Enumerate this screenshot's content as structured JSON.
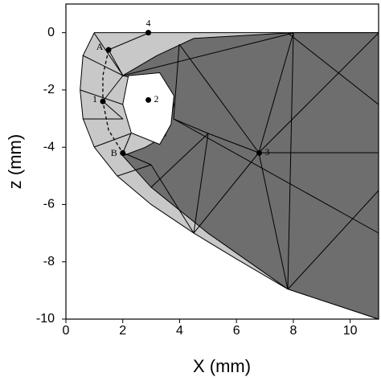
{
  "chart_data": {
    "type": "mesh",
    "xlabel": "X (mm)",
    "ylabel": "z (mm)",
    "xlim": [
      0,
      11
    ],
    "ylim": [
      -10,
      1
    ],
    "xticks": [
      0,
      2,
      4,
      6,
      8,
      10
    ],
    "yticks": [
      0,
      -2,
      -4,
      -6,
      -8,
      -10
    ],
    "regions": [
      {
        "color": "#c8c8c8",
        "x": [
          1,
          11,
          11,
          7.8,
          6,
          4.5,
          3,
          1.8,
          1,
          0.6,
          0.5,
          0.6
        ],
        "y": [
          0,
          0,
          -10,
          -8.95,
          -7.9,
          -7,
          -6,
          -5,
          -4,
          -3,
          -2,
          -0.8
        ]
      },
      {
        "color": "#6e6e6e",
        "x": [
          2,
          3.2,
          4.5,
          8,
          11,
          11,
          7.8,
          5,
          3,
          2,
          2.8,
          3.5,
          3.8,
          3.5
        ],
        "y": [
          -1.5,
          -0.8,
          -0.2,
          0,
          0,
          -10,
          -8.95,
          -7,
          -5.4,
          -4.3,
          -4,
          -3.6,
          -2.5,
          -1.8
        ]
      },
      {
        "color": "#ffffff",
        "x": [
          2.2,
          3.3,
          3.8,
          3.7,
          3.3,
          2.3,
          2
        ],
        "y": [
          -1.5,
          -1.4,
          -2.2,
          -3.2,
          -3.9,
          -3.5,
          -2.5
        ]
      }
    ],
    "arc": {
      "x": [
        1.5,
        1.3,
        1.3,
        1.5,
        2
      ],
      "y": [
        -0.6,
        -1.5,
        -2.4,
        -3.4,
        -4.2
      ]
    },
    "points": {
      "labels": [
        "A",
        "1",
        "2",
        "B",
        "3",
        "4"
      ],
      "x": [
        1.5,
        1.3,
        2.9,
        2,
        6.8,
        2.9
      ],
      "y": [
        -0.6,
        -2.4,
        -2.35,
        -4.2,
        -4.2,
        0
      ]
    }
  }
}
